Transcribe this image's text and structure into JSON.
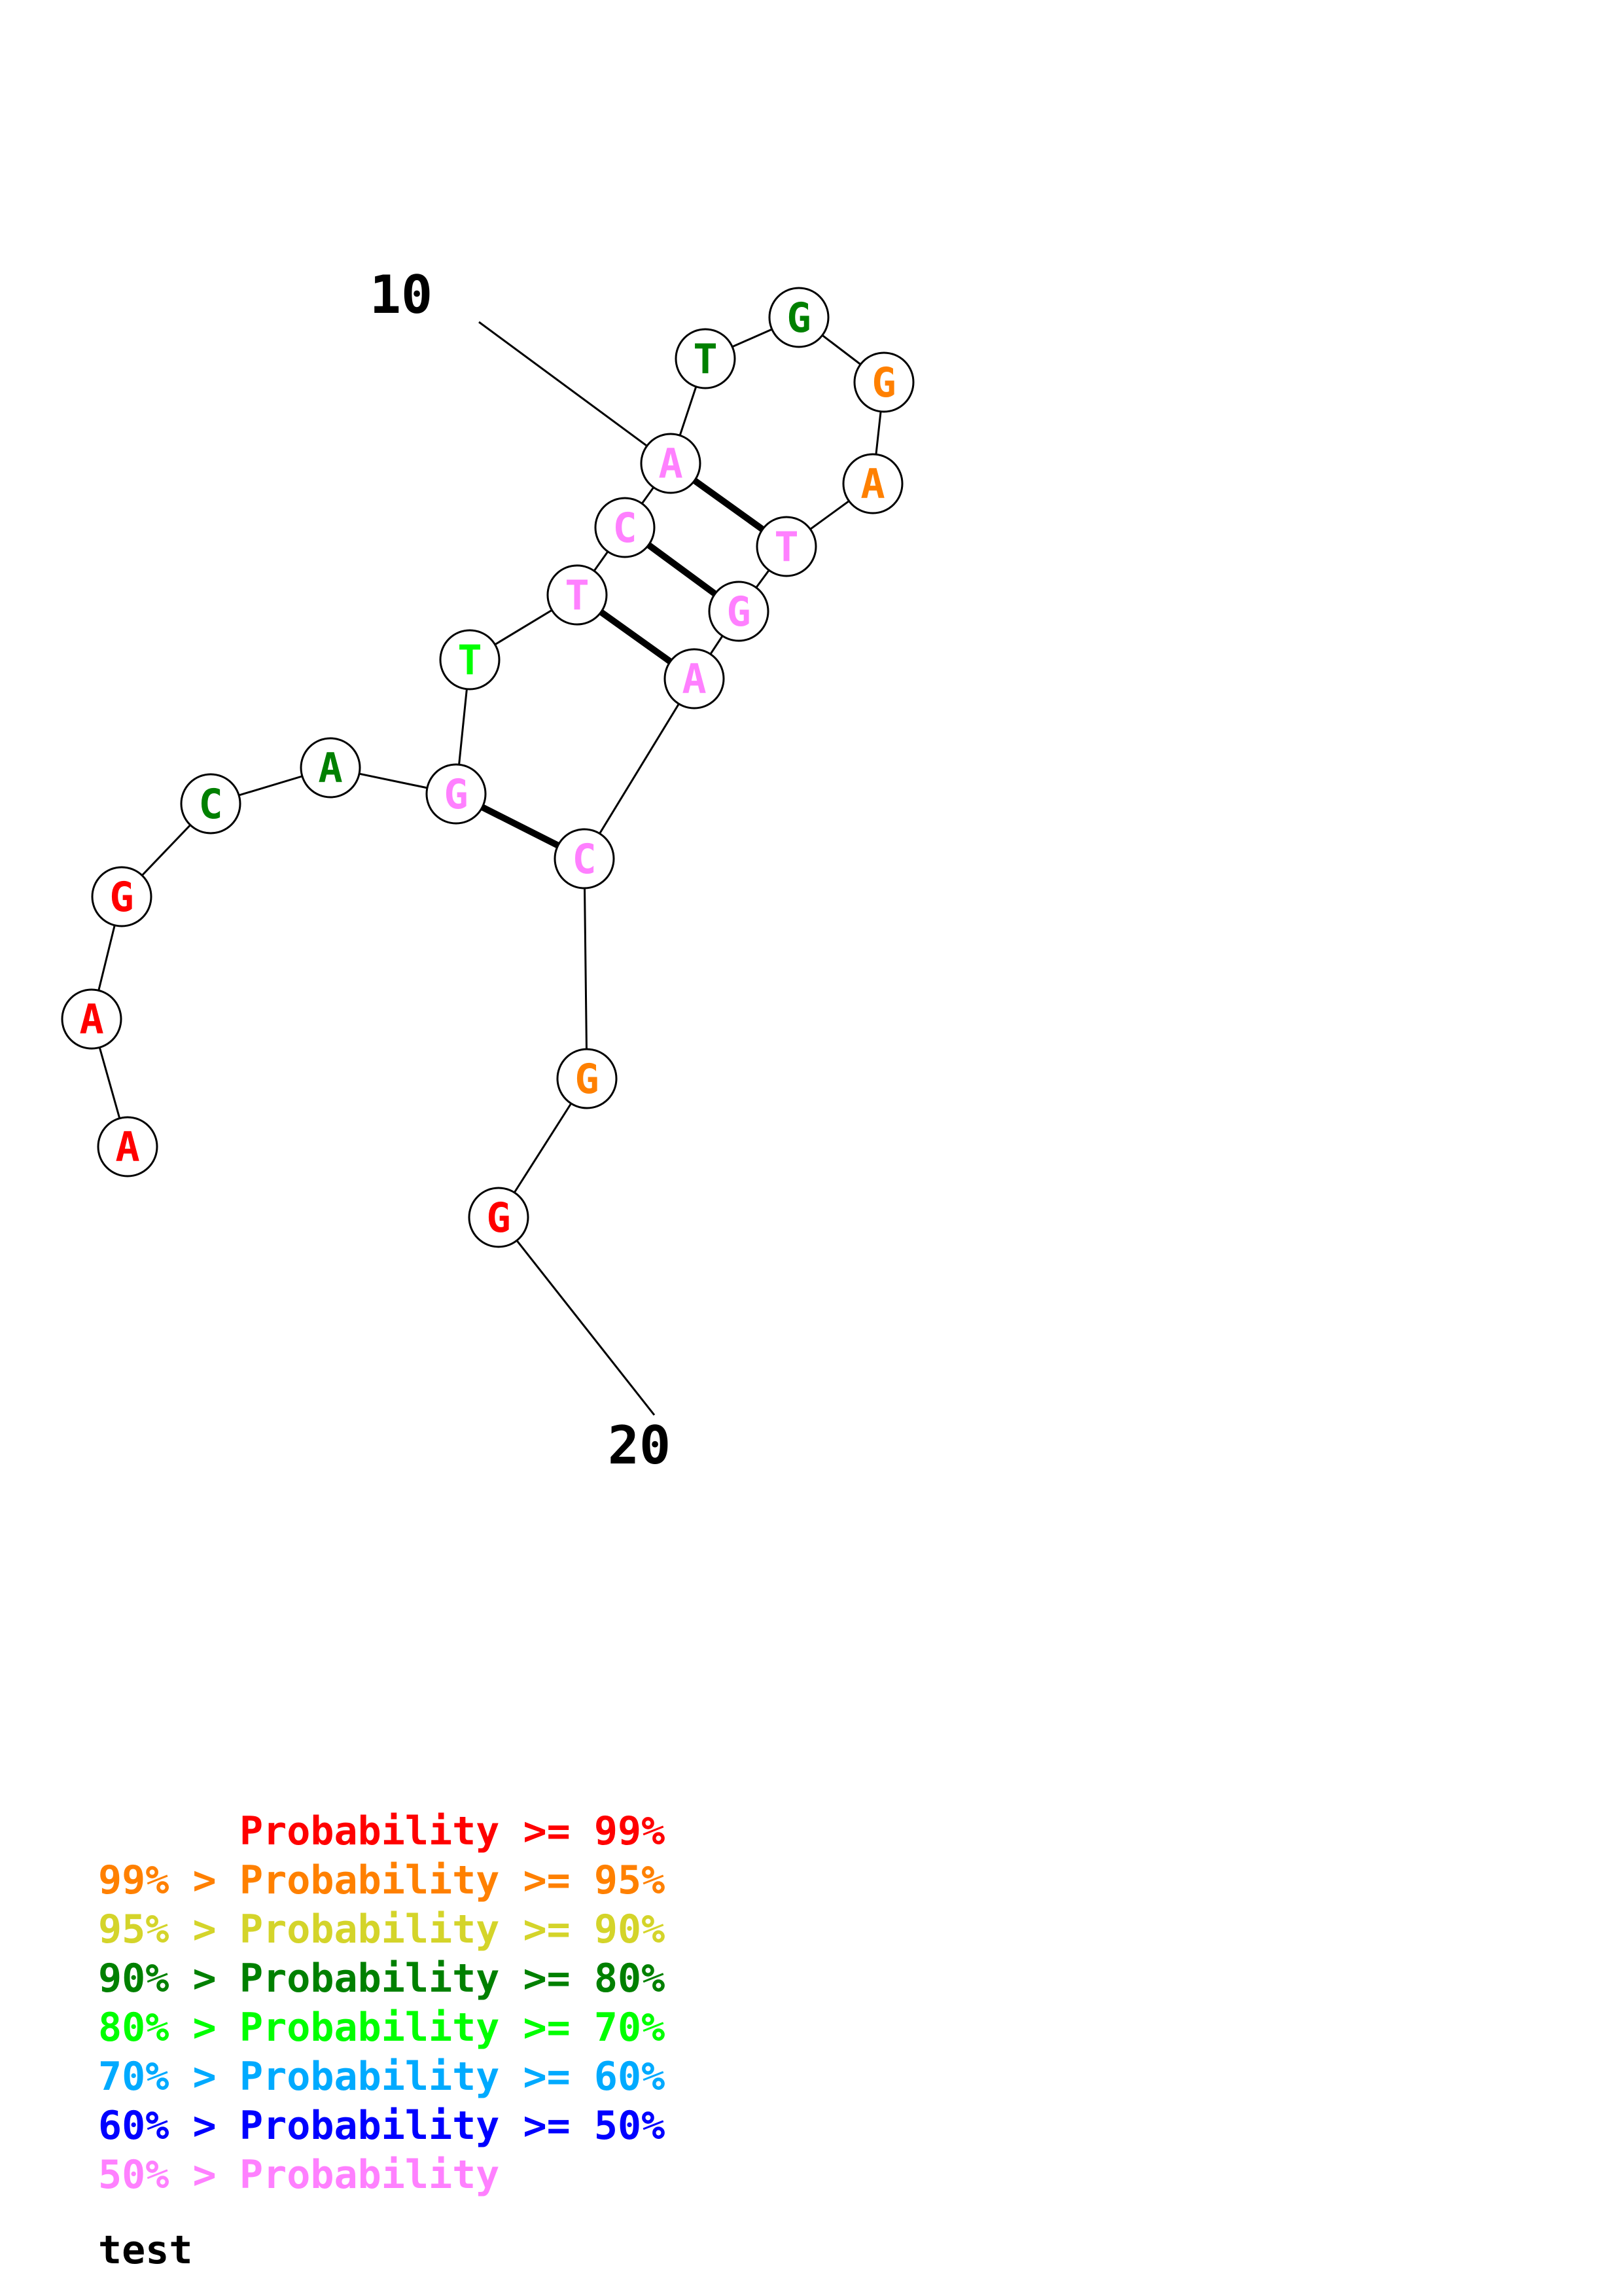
{
  "colors": {
    "p99": "#ff0000",
    "p95": "#ff8000",
    "p90": "#d4d42a",
    "p80": "#008000",
    "p70": "#00ff00",
    "p60": "#00aaff",
    "p50": "#0000ff",
    "plow": "#ff80ff"
  },
  "nucleotides": [
    {
      "base": "A",
      "color": "p99"
    },
    {
      "base": "A",
      "color": "p99"
    },
    {
      "base": "G",
      "color": "p99"
    },
    {
      "base": "C",
      "color": "p80"
    },
    {
      "base": "A",
      "color": "p80"
    },
    {
      "base": "G",
      "color": "plow"
    },
    {
      "base": "T",
      "color": "p70"
    },
    {
      "base": "T",
      "color": "plow"
    },
    {
      "base": "C",
      "color": "plow"
    },
    {
      "base": "A",
      "color": "plow"
    },
    {
      "base": "T",
      "color": "p80"
    },
    {
      "base": "G",
      "color": "p80"
    },
    {
      "base": "G",
      "color": "p95"
    },
    {
      "base": "A",
      "color": "p95"
    },
    {
      "base": "T",
      "color": "plow"
    },
    {
      "base": "G",
      "color": "plow"
    },
    {
      "base": "A",
      "color": "plow"
    },
    {
      "base": "C",
      "color": "plow"
    },
    {
      "base": "G",
      "color": "p95"
    },
    {
      "base": "G",
      "color": "p99"
    }
  ],
  "base_pairs": [
    [
      10,
      15
    ],
    [
      9,
      16
    ],
    [
      8,
      17
    ],
    [
      6,
      18
    ]
  ],
  "position_labels": [
    {
      "text": "10",
      "nuc": 10
    },
    {
      "text": "20",
      "nuc": 20
    }
  ],
  "legend": [
    {
      "prefix": "",
      "middle": "Probability >= 99%",
      "prefix_color": "p99",
      "middle_color": "p99"
    },
    {
      "prefix": "99% > ",
      "middle": "Probability >= 95%",
      "prefix_color": "p95",
      "middle_color": "p95"
    },
    {
      "prefix": "95% > ",
      "middle": "Probability >= 90%",
      "prefix_color": "p90",
      "middle_color": "p90"
    },
    {
      "prefix": "90% > ",
      "middle": "Probability >= 80%",
      "prefix_color": "p80",
      "middle_color": "p80"
    },
    {
      "prefix": "80% > ",
      "middle": "Probability >= 70%",
      "prefix_color": "p70",
      "middle_color": "p70"
    },
    {
      "prefix": "70% > ",
      "middle": "Probability >= 60%",
      "prefix_color": "p60",
      "middle_color": "p60"
    },
    {
      "prefix": "60% > ",
      "middle": "Probability >= 50%",
      "prefix_color": "p50",
      "middle_color": "p50"
    },
    {
      "prefix": "50% > ",
      "middle": "Probability",
      "prefix_color": "plow",
      "middle_color": "plow"
    }
  ],
  "caption": "test"
}
